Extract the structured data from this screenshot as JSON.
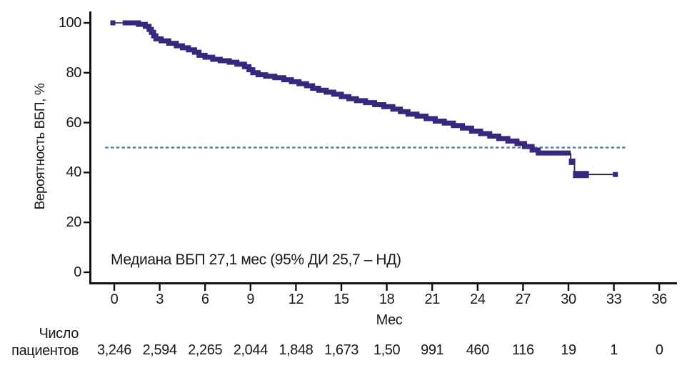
{
  "chart_data": {
    "type": "line",
    "subtype": "kaplan-meier-step",
    "title": "",
    "ylabel": "Вероятность ВБП, %",
    "xlabel": "Мес",
    "annotation": "Медиана ВБП 27,1 мес (95% ДИ 25,7 – НД)",
    "xlim": [
      0,
      36
    ],
    "ylim": [
      0,
      100
    ],
    "x_ticks": [
      0,
      3,
      6,
      9,
      12,
      15,
      18,
      21,
      24,
      27,
      30,
      33,
      36
    ],
    "y_ticks": [
      0,
      20,
      40,
      60,
      80,
      100
    ],
    "grid": false,
    "legend": "none",
    "median_reference_line": {
      "y": 50,
      "x_from": -0.6,
      "x_to": 33.8,
      "style": "dashed"
    },
    "series": [
      {
        "name": "Вероятность ВБП",
        "start_marker": [
          0,
          100
        ],
        "lead_segment": [
          [
            0,
            100
          ],
          [
            0.55,
            100
          ]
        ],
        "step_points": [
          [
            0.55,
            100
          ],
          [
            1.6,
            99.4
          ],
          [
            2.05,
            98.6
          ],
          [
            2.3,
            97.4
          ],
          [
            2.45,
            96.2
          ],
          [
            2.6,
            94.8
          ],
          [
            2.75,
            93.6
          ],
          [
            3.1,
            92.8
          ],
          [
            3.6,
            91.8
          ],
          [
            4.1,
            90.8
          ],
          [
            4.5,
            90.0
          ],
          [
            4.9,
            89.2
          ],
          [
            5.3,
            88.2
          ],
          [
            5.6,
            87.0
          ],
          [
            6.0,
            86.2
          ],
          [
            6.5,
            85.4
          ],
          [
            7.0,
            84.8
          ],
          [
            7.6,
            84.2
          ],
          [
            8.1,
            83.4
          ],
          [
            8.6,
            82.4
          ],
          [
            8.9,
            81.2
          ],
          [
            9.15,
            80.0
          ],
          [
            9.5,
            79.2
          ],
          [
            10.0,
            78.6
          ],
          [
            10.6,
            78.0
          ],
          [
            11.2,
            77.2
          ],
          [
            11.7,
            76.4
          ],
          [
            12.2,
            75.6
          ],
          [
            12.7,
            74.8
          ],
          [
            13.1,
            73.8
          ],
          [
            13.5,
            73.0
          ],
          [
            14.0,
            72.2
          ],
          [
            14.5,
            71.4
          ],
          [
            15.0,
            70.4
          ],
          [
            15.5,
            69.6
          ],
          [
            16.0,
            68.8
          ],
          [
            16.6,
            68.0
          ],
          [
            17.2,
            67.2
          ],
          [
            17.8,
            66.4
          ],
          [
            18.4,
            65.4
          ],
          [
            18.9,
            64.4
          ],
          [
            19.4,
            63.4
          ],
          [
            20.0,
            62.6
          ],
          [
            20.6,
            61.6
          ],
          [
            21.2,
            60.6
          ],
          [
            21.8,
            59.8
          ],
          [
            22.4,
            58.8
          ],
          [
            23.0,
            57.8
          ],
          [
            23.6,
            56.6
          ],
          [
            24.2,
            55.6
          ],
          [
            24.8,
            54.6
          ],
          [
            25.4,
            53.6
          ],
          [
            26.0,
            52.6
          ],
          [
            26.6,
            51.6
          ],
          [
            27.1,
            50.4
          ],
          [
            27.6,
            49.0
          ],
          [
            28.0,
            47.8
          ],
          [
            30.15,
            47.8
          ]
        ],
        "tail_segment": [
          [
            30.15,
            47.8
          ],
          [
            30.15,
            43.8
          ],
          [
            30.4,
            43.8
          ],
          [
            30.4,
            39.2
          ],
          [
            33.1,
            39.2
          ]
        ],
        "censor_box": [
          30.24,
          44.3
        ],
        "censor_bar": {
          "x_from": 30.3,
          "x_to": 31.35,
          "y": 39.2
        },
        "end_marker": [
          33.1,
          39.2
        ]
      }
    ],
    "risk_table": {
      "label_lines": [
        "Число",
        "пациентов"
      ],
      "values": [
        "3,246",
        "2,594",
        "2,265",
        "2,044",
        "1,848",
        "1,673",
        "1,50",
        "991",
        "460",
        "116",
        "19",
        "1",
        "0"
      ]
    }
  },
  "colors": {
    "curve": "#37277e",
    "tail_line": "#26262e",
    "median_line": "#5b7cb0",
    "axis": "#111111",
    "text": "#1a1a1a"
  }
}
